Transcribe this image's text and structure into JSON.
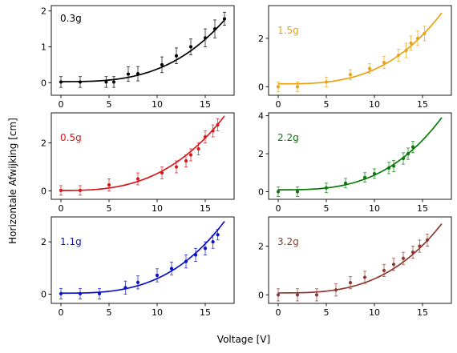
{
  "figure": {
    "xlabel": "Voltage [V]",
    "ylabel": "Horizontale Afwijking [cm]"
  },
  "chart_data": [
    {
      "type": "scatter",
      "label": "0.3g",
      "color": "#000000",
      "xlim": [
        -1,
        18
      ],
      "ylim": [
        -0.35,
        2.15
      ],
      "xticks": [
        0,
        5,
        10,
        15
      ],
      "yticks": [
        0,
        1,
        2
      ],
      "points": [
        {
          "x": 0,
          "y": 0.02,
          "err": 0.15
        },
        {
          "x": 2,
          "y": 0.02,
          "err": 0.15
        },
        {
          "x": 4.7,
          "y": 0.02,
          "err": 0.15
        },
        {
          "x": 5.5,
          "y": 0.02,
          "err": 0.15
        },
        {
          "x": 7,
          "y": 0.24,
          "err": 0.2
        },
        {
          "x": 8,
          "y": 0.25,
          "err": 0.2
        },
        {
          "x": 10.5,
          "y": 0.5,
          "err": 0.22
        },
        {
          "x": 12,
          "y": 0.75,
          "err": 0.22
        },
        {
          "x": 13.5,
          "y": 1.0,
          "err": 0.22
        },
        {
          "x": 15,
          "y": 1.25,
          "err": 0.25
        },
        {
          "x": 16,
          "y": 1.5,
          "err": 0.25
        },
        {
          "x": 17,
          "y": 1.78,
          "err": 0.18
        }
      ],
      "fit": {
        "xmin": 0,
        "xmax": 17,
        "a": 0.03,
        "b": 1.75,
        "p": 3
      }
    },
    {
      "type": "scatter",
      "label": "1.5g",
      "color": "#E8A315",
      "xlim": [
        -1,
        18
      ],
      "ylim": [
        -0.35,
        3.35
      ],
      "xticks": [
        0,
        5,
        10,
        15
      ],
      "yticks": [
        0,
        2
      ],
      "points": [
        {
          "x": 0,
          "y": 0.0,
          "err": 0.2
        },
        {
          "x": 2,
          "y": 0.0,
          "err": 0.2
        },
        {
          "x": 5,
          "y": 0.2,
          "err": 0.2
        },
        {
          "x": 7.5,
          "y": 0.5,
          "err": 0.2
        },
        {
          "x": 9.5,
          "y": 0.75,
          "err": 0.2
        },
        {
          "x": 11,
          "y": 1.0,
          "err": 0.25
        },
        {
          "x": 12.5,
          "y": 1.3,
          "err": 0.25
        },
        {
          "x": 13.3,
          "y": 1.5,
          "err": 0.3
        },
        {
          "x": 13.8,
          "y": 1.8,
          "err": 0.3
        },
        {
          "x": 14.5,
          "y": 2.0,
          "err": 0.3
        },
        {
          "x": 15.2,
          "y": 2.2,
          "err": 0.3
        }
      ],
      "fit": {
        "xmin": 0,
        "xmax": 17,
        "a": 0.12,
        "b": 3.05,
        "p": 3
      }
    },
    {
      "type": "scatter",
      "label": "0.5g",
      "color": "#D7191C",
      "xlim": [
        -1,
        18
      ],
      "ylim": [
        -0.35,
        3.25
      ],
      "xticks": [
        0,
        5,
        10,
        15
      ],
      "yticks": [
        0,
        2
      ],
      "points": [
        {
          "x": 0,
          "y": 0.02,
          "err": 0.2
        },
        {
          "x": 2,
          "y": 0.02,
          "err": 0.2
        },
        {
          "x": 5,
          "y": 0.25,
          "err": 0.25
        },
        {
          "x": 8,
          "y": 0.5,
          "err": 0.25
        },
        {
          "x": 10.5,
          "y": 0.75,
          "err": 0.25
        },
        {
          "x": 12,
          "y": 1.0,
          "err": 0.25
        },
        {
          "x": 13,
          "y": 1.25,
          "err": 0.25
        },
        {
          "x": 13.5,
          "y": 1.5,
          "err": 0.25
        },
        {
          "x": 14.3,
          "y": 1.75,
          "err": 0.25
        },
        {
          "x": 15,
          "y": 2.25,
          "err": 0.25
        },
        {
          "x": 15.8,
          "y": 2.5,
          "err": 0.25
        },
        {
          "x": 16.3,
          "y": 2.75,
          "err": 0.25
        }
      ],
      "fit": {
        "xmin": 0,
        "xmax": 17,
        "a": 0.02,
        "b": 3.12,
        "p": 2.8
      }
    },
    {
      "type": "scatter",
      "label": "2.2g",
      "color": "#0A7A0A",
      "xlim": [
        -1,
        18
      ],
      "ylim": [
        -0.4,
        4.15
      ],
      "xticks": [
        0,
        5,
        10,
        15
      ],
      "yticks": [
        0,
        2,
        4
      ],
      "points": [
        {
          "x": 0,
          "y": 0.0,
          "err": 0.25
        },
        {
          "x": 2,
          "y": 0.0,
          "err": 0.25
        },
        {
          "x": 5,
          "y": 0.2,
          "err": 0.25
        },
        {
          "x": 7,
          "y": 0.45,
          "err": 0.25
        },
        {
          "x": 9,
          "y": 0.75,
          "err": 0.25
        },
        {
          "x": 10,
          "y": 0.95,
          "err": 0.25
        },
        {
          "x": 11.5,
          "y": 1.25,
          "err": 0.3
        },
        {
          "x": 12,
          "y": 1.35,
          "err": 0.3
        },
        {
          "x": 13,
          "y": 1.75,
          "err": 0.3
        },
        {
          "x": 13.5,
          "y": 2.0,
          "err": 0.3
        },
        {
          "x": 14,
          "y": 2.35,
          "err": 0.3
        }
      ],
      "fit": {
        "xmin": 0,
        "xmax": 17,
        "a": 0.1,
        "b": 3.9,
        "p": 3
      }
    },
    {
      "type": "scatter",
      "label": "1.1g",
      "color": "#0A12C8",
      "xlim": [
        -1,
        18
      ],
      "ylim": [
        -0.35,
        2.95
      ],
      "xticks": [
        0,
        5,
        10,
        15
      ],
      "yticks": [
        0,
        2
      ],
      "points": [
        {
          "x": 0,
          "y": 0.02,
          "err": 0.2
        },
        {
          "x": 2,
          "y": 0.02,
          "err": 0.2
        },
        {
          "x": 4,
          "y": 0.02,
          "err": 0.2
        },
        {
          "x": 6.7,
          "y": 0.25,
          "err": 0.25
        },
        {
          "x": 8,
          "y": 0.45,
          "err": 0.25
        },
        {
          "x": 10,
          "y": 0.72,
          "err": 0.25
        },
        {
          "x": 11.5,
          "y": 0.98,
          "err": 0.25
        },
        {
          "x": 13,
          "y": 1.25,
          "err": 0.25
        },
        {
          "x": 14,
          "y": 1.5,
          "err": 0.25
        },
        {
          "x": 15,
          "y": 1.75,
          "err": 0.25
        },
        {
          "x": 15.8,
          "y": 2.0,
          "err": 0.25
        },
        {
          "x": 16.3,
          "y": 2.27,
          "err": 0.2
        }
      ],
      "fit": {
        "xmin": 0,
        "xmax": 17,
        "a": 0.04,
        "b": 2.78,
        "p": 3
      }
    },
    {
      "type": "scatter",
      "label": "3.2g",
      "color": "#8E3A2E",
      "xlim": [
        -1,
        18
      ],
      "ylim": [
        -0.35,
        3.2
      ],
      "xticks": [
        0,
        5,
        10,
        15
      ],
      "yticks": [
        0,
        2
      ],
      "points": [
        {
          "x": 0,
          "y": 0.0,
          "err": 0.25
        },
        {
          "x": 2,
          "y": 0.0,
          "err": 0.25
        },
        {
          "x": 4,
          "y": 0.0,
          "err": 0.25
        },
        {
          "x": 6,
          "y": 0.2,
          "err": 0.25
        },
        {
          "x": 7.5,
          "y": 0.5,
          "err": 0.25
        },
        {
          "x": 9,
          "y": 0.72,
          "err": 0.25
        },
        {
          "x": 11,
          "y": 1.0,
          "err": 0.25
        },
        {
          "x": 12,
          "y": 1.25,
          "err": 0.25
        },
        {
          "x": 13,
          "y": 1.5,
          "err": 0.25
        },
        {
          "x": 14,
          "y": 1.75,
          "err": 0.25
        },
        {
          "x": 14.7,
          "y": 2.0,
          "err": 0.25
        },
        {
          "x": 15.5,
          "y": 2.25,
          "err": 0.25
        }
      ],
      "fit": {
        "xmin": 0,
        "xmax": 17,
        "a": 0.08,
        "b": 2.92,
        "p": 3
      }
    }
  ]
}
